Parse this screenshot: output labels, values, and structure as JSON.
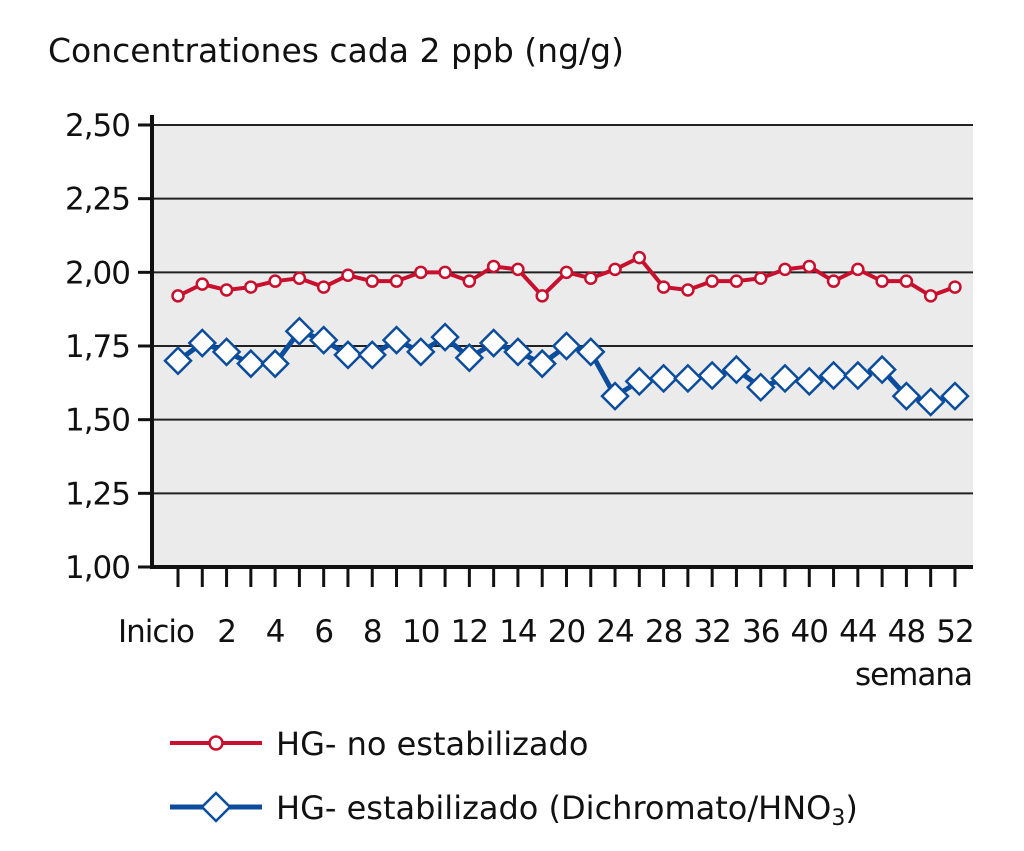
{
  "chart_data": {
    "type": "line",
    "title": "",
    "ylabel": "Concentrationes cada 2 ppb (ng/g)",
    "xlabel": "semana",
    "categories": [
      "Inicio",
      "2",
      "4",
      "6",
      "8",
      "10",
      "12",
      "14",
      "20",
      "24",
      "28",
      "32",
      "36",
      "40",
      "44",
      "48",
      "52"
    ],
    "x": [
      0,
      1,
      2,
      3,
      4,
      5,
      6,
      7,
      8,
      9,
      10,
      11,
      12,
      13,
      14,
      15,
      16,
      17,
      18,
      19,
      20,
      21,
      22,
      23,
      24,
      25,
      26,
      27,
      28,
      29,
      30,
      31,
      32
    ],
    "ylim": [
      1.0,
      2.5
    ],
    "yticks": [
      "1,00",
      "1,25",
      "1,50",
      "1,75",
      "2,00",
      "2,25",
      "2,50"
    ],
    "grid": true,
    "legend_position": "bottom",
    "series": [
      {
        "name": "HG- no estabilizado",
        "color": "#c8102e",
        "marker": "circle",
        "values": [
          1.92,
          1.96,
          1.94,
          1.95,
          1.97,
          1.98,
          1.95,
          1.99,
          1.97,
          1.97,
          2.0,
          2.0,
          1.97,
          2.02,
          2.01,
          1.92,
          2.0,
          1.98,
          2.01,
          2.05,
          1.95,
          1.94,
          1.97,
          1.97,
          1.98,
          2.01,
          2.02,
          1.97,
          2.01,
          1.97,
          1.97,
          1.92,
          1.95
        ]
      },
      {
        "name": "HG- estabilizado (Dichromato/HNO",
        "name_subscript": "3",
        "name_suffix": ")",
        "color": "#0b4d9c",
        "marker": "diamond",
        "values": [
          1.7,
          1.76,
          1.73,
          1.69,
          1.69,
          1.8,
          1.77,
          1.72,
          1.72,
          1.77,
          1.73,
          1.78,
          1.71,
          1.76,
          1.73,
          1.69,
          1.75,
          1.73,
          1.58,
          1.63,
          1.64,
          1.64,
          1.65,
          1.67,
          1.61,
          1.64,
          1.63,
          1.65,
          1.65,
          1.67,
          1.58,
          1.56,
          1.58
        ]
      }
    ]
  }
}
